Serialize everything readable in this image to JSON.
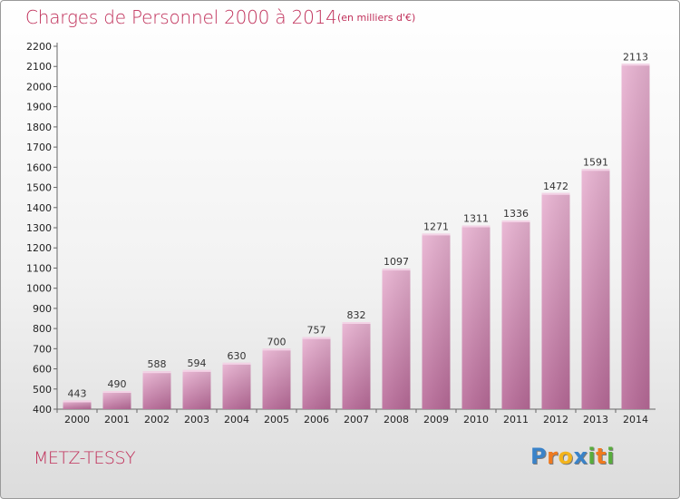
{
  "chart_data": {
    "type": "bar",
    "title": "Charges de Personnel 2000 à 2014",
    "subtitle": "(en milliers d'€)",
    "categories": [
      "2000",
      "2001",
      "2002",
      "2003",
      "2004",
      "2005",
      "2006",
      "2007",
      "2008",
      "2009",
      "2010",
      "2011",
      "2012",
      "2013",
      "2014"
    ],
    "values": [
      443,
      490,
      588,
      594,
      630,
      700,
      757,
      832,
      1097,
      1271,
      1311,
      1336,
      1472,
      1591,
      2113
    ],
    "ylim": [
      400,
      2200
    ],
    "yticks": [
      400,
      500,
      600,
      700,
      800,
      900,
      1000,
      1100,
      1200,
      1300,
      1400,
      1500,
      1600,
      1700,
      1800,
      1900,
      2000,
      2100,
      2200
    ],
    "xlabel": "",
    "ylabel": "",
    "grid": false,
    "bar_color": "#d77fae",
    "bar_color_light": "#e8b0d0"
  },
  "town": "METZ-TESSY",
  "logo": {
    "letters": [
      "P",
      "r",
      "o",
      "x",
      "i",
      "t",
      "i"
    ],
    "colors": [
      "#3a83c9",
      "#ef7a1f",
      "#f3b41c",
      "#3a83c9",
      "#58ad3c",
      "#ef7a1f",
      "#58ad3c"
    ]
  },
  "colors": {
    "accent": "#c0305a"
  }
}
